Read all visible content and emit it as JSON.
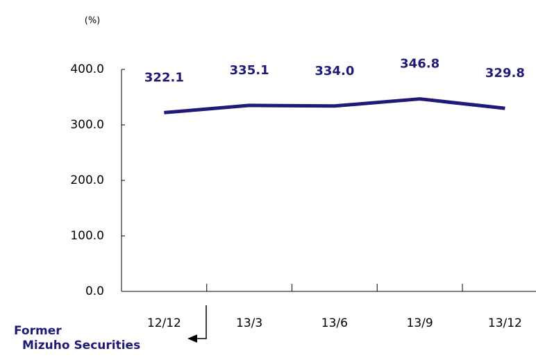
{
  "chart_data": {
    "type": "line",
    "unit_label": "(%)",
    "categories": [
      "12/12",
      "13/3",
      "13/6",
      "13/9",
      "13/12"
    ],
    "series": [
      {
        "color": "#1f1a78",
        "values": [
          322.1,
          335.1,
          334.0,
          346.8,
          329.8
        ],
        "value_labels": [
          "322.1",
          "335.1",
          "334.0",
          "346.8",
          "329.8"
        ]
      }
    ],
    "ylim": [
      0,
      400
    ],
    "yticks": [
      {
        "value": 0,
        "label": "0.0"
      },
      {
        "value": 100,
        "label": "100.0"
      },
      {
        "value": 200,
        "label": "200.0"
      },
      {
        "value": 300,
        "label": "300.0"
      },
      {
        "value": 400,
        "label": "400.0"
      }
    ],
    "annotation_lines": [
      "Former",
      "Mizuho Securities"
    ]
  }
}
